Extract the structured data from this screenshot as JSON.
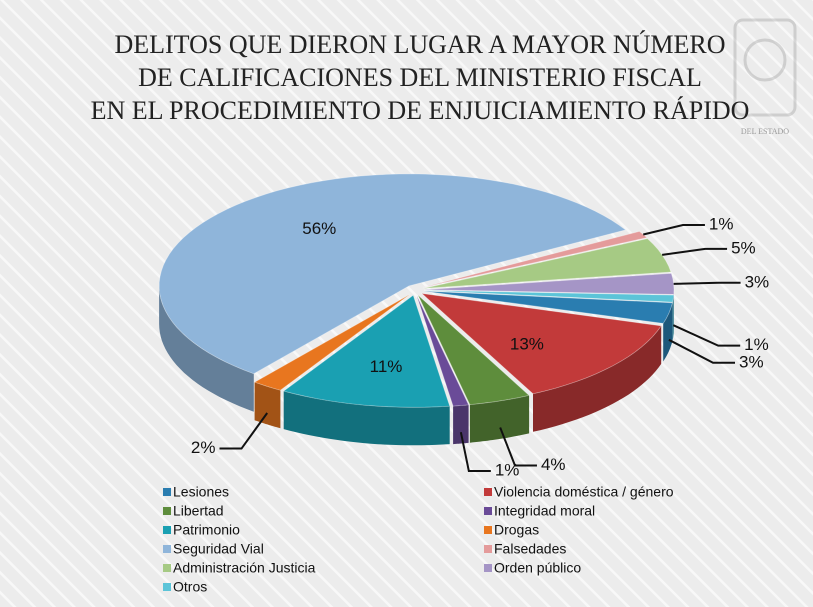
{
  "chart_data": {
    "type": "pie",
    "title": [
      "DELITOS QUE DIERON LUGAR A MAYOR NÚMERO",
      "DE CALIFICACIONES DEL MINISTERIO FISCAL",
      "EN EL PROCEDIMIENTO DE ENJUICIAMIENTO RÁPIDO"
    ],
    "watermark": "DEL ESTADO",
    "categories": [
      "Lesiones",
      "Violencia doméstica / género",
      "Libertad",
      "Integridad moral",
      "Patrimonio",
      "Drogas",
      "Seguridad Vial",
      "Falsedades",
      "Administración Justicia",
      "Orden público",
      "Otros"
    ],
    "values": [
      3,
      13,
      4,
      1,
      11,
      2,
      56,
      1,
      5,
      3,
      1
    ],
    "value_labels": [
      "3%",
      "13%",
      "4%",
      "1%",
      "11%",
      "2%",
      "56%",
      "1%",
      "5%",
      "3%",
      "1%"
    ],
    "colors": [
      "#2a7db0",
      "#c23a3a",
      "#5e8d3c",
      "#6a4b98",
      "#1aa0b2",
      "#e8761f",
      "#8fb5da",
      "#e49b9b",
      "#a6ca84",
      "#a595c6",
      "#5cc4d8"
    ],
    "legend": "bottom"
  }
}
